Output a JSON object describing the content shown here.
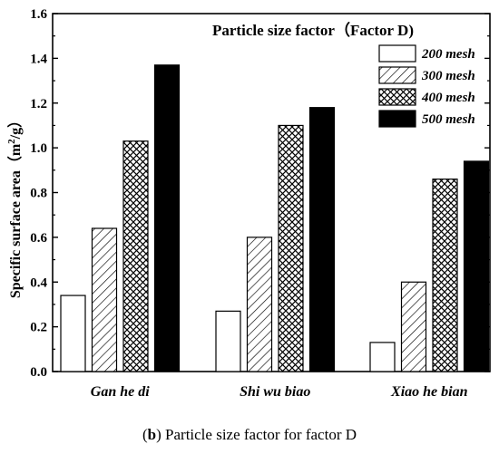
{
  "chart_data": {
    "type": "bar",
    "title": "Particle size factor（Factor D)",
    "xlabel": "",
    "ylabel": "Specific surface area（m²/g）",
    "ylabel_parts": [
      "Specific surface area（m",
      "2",
      "/g）"
    ],
    "ylim": [
      0,
      1.6
    ],
    "yticks": [
      "0.0",
      "0.2",
      "0.4",
      "0.6",
      "0.8",
      "1.0",
      "1.2",
      "1.4",
      "1.6"
    ],
    "categories": [
      "Gan he di",
      "Shi wu biao",
      "Xiao he bian"
    ],
    "series": [
      {
        "name": "200 mesh",
        "values": [
          0.34,
          0.27,
          0.13
        ],
        "pattern": "white"
      },
      {
        "name": "300 mesh",
        "values": [
          0.64,
          0.6,
          0.4
        ],
        "pattern": "hatch"
      },
      {
        "name": "400 mesh",
        "values": [
          1.03,
          1.1,
          0.86
        ],
        "pattern": "crosshatch"
      },
      {
        "name": "500 mesh",
        "values": [
          1.37,
          1.18,
          0.94
        ],
        "pattern": "black"
      }
    ],
    "legend_position": "top-right",
    "grid": false
  },
  "caption": {
    "tag": "b",
    "text": "Particle size factor for factor D"
  }
}
